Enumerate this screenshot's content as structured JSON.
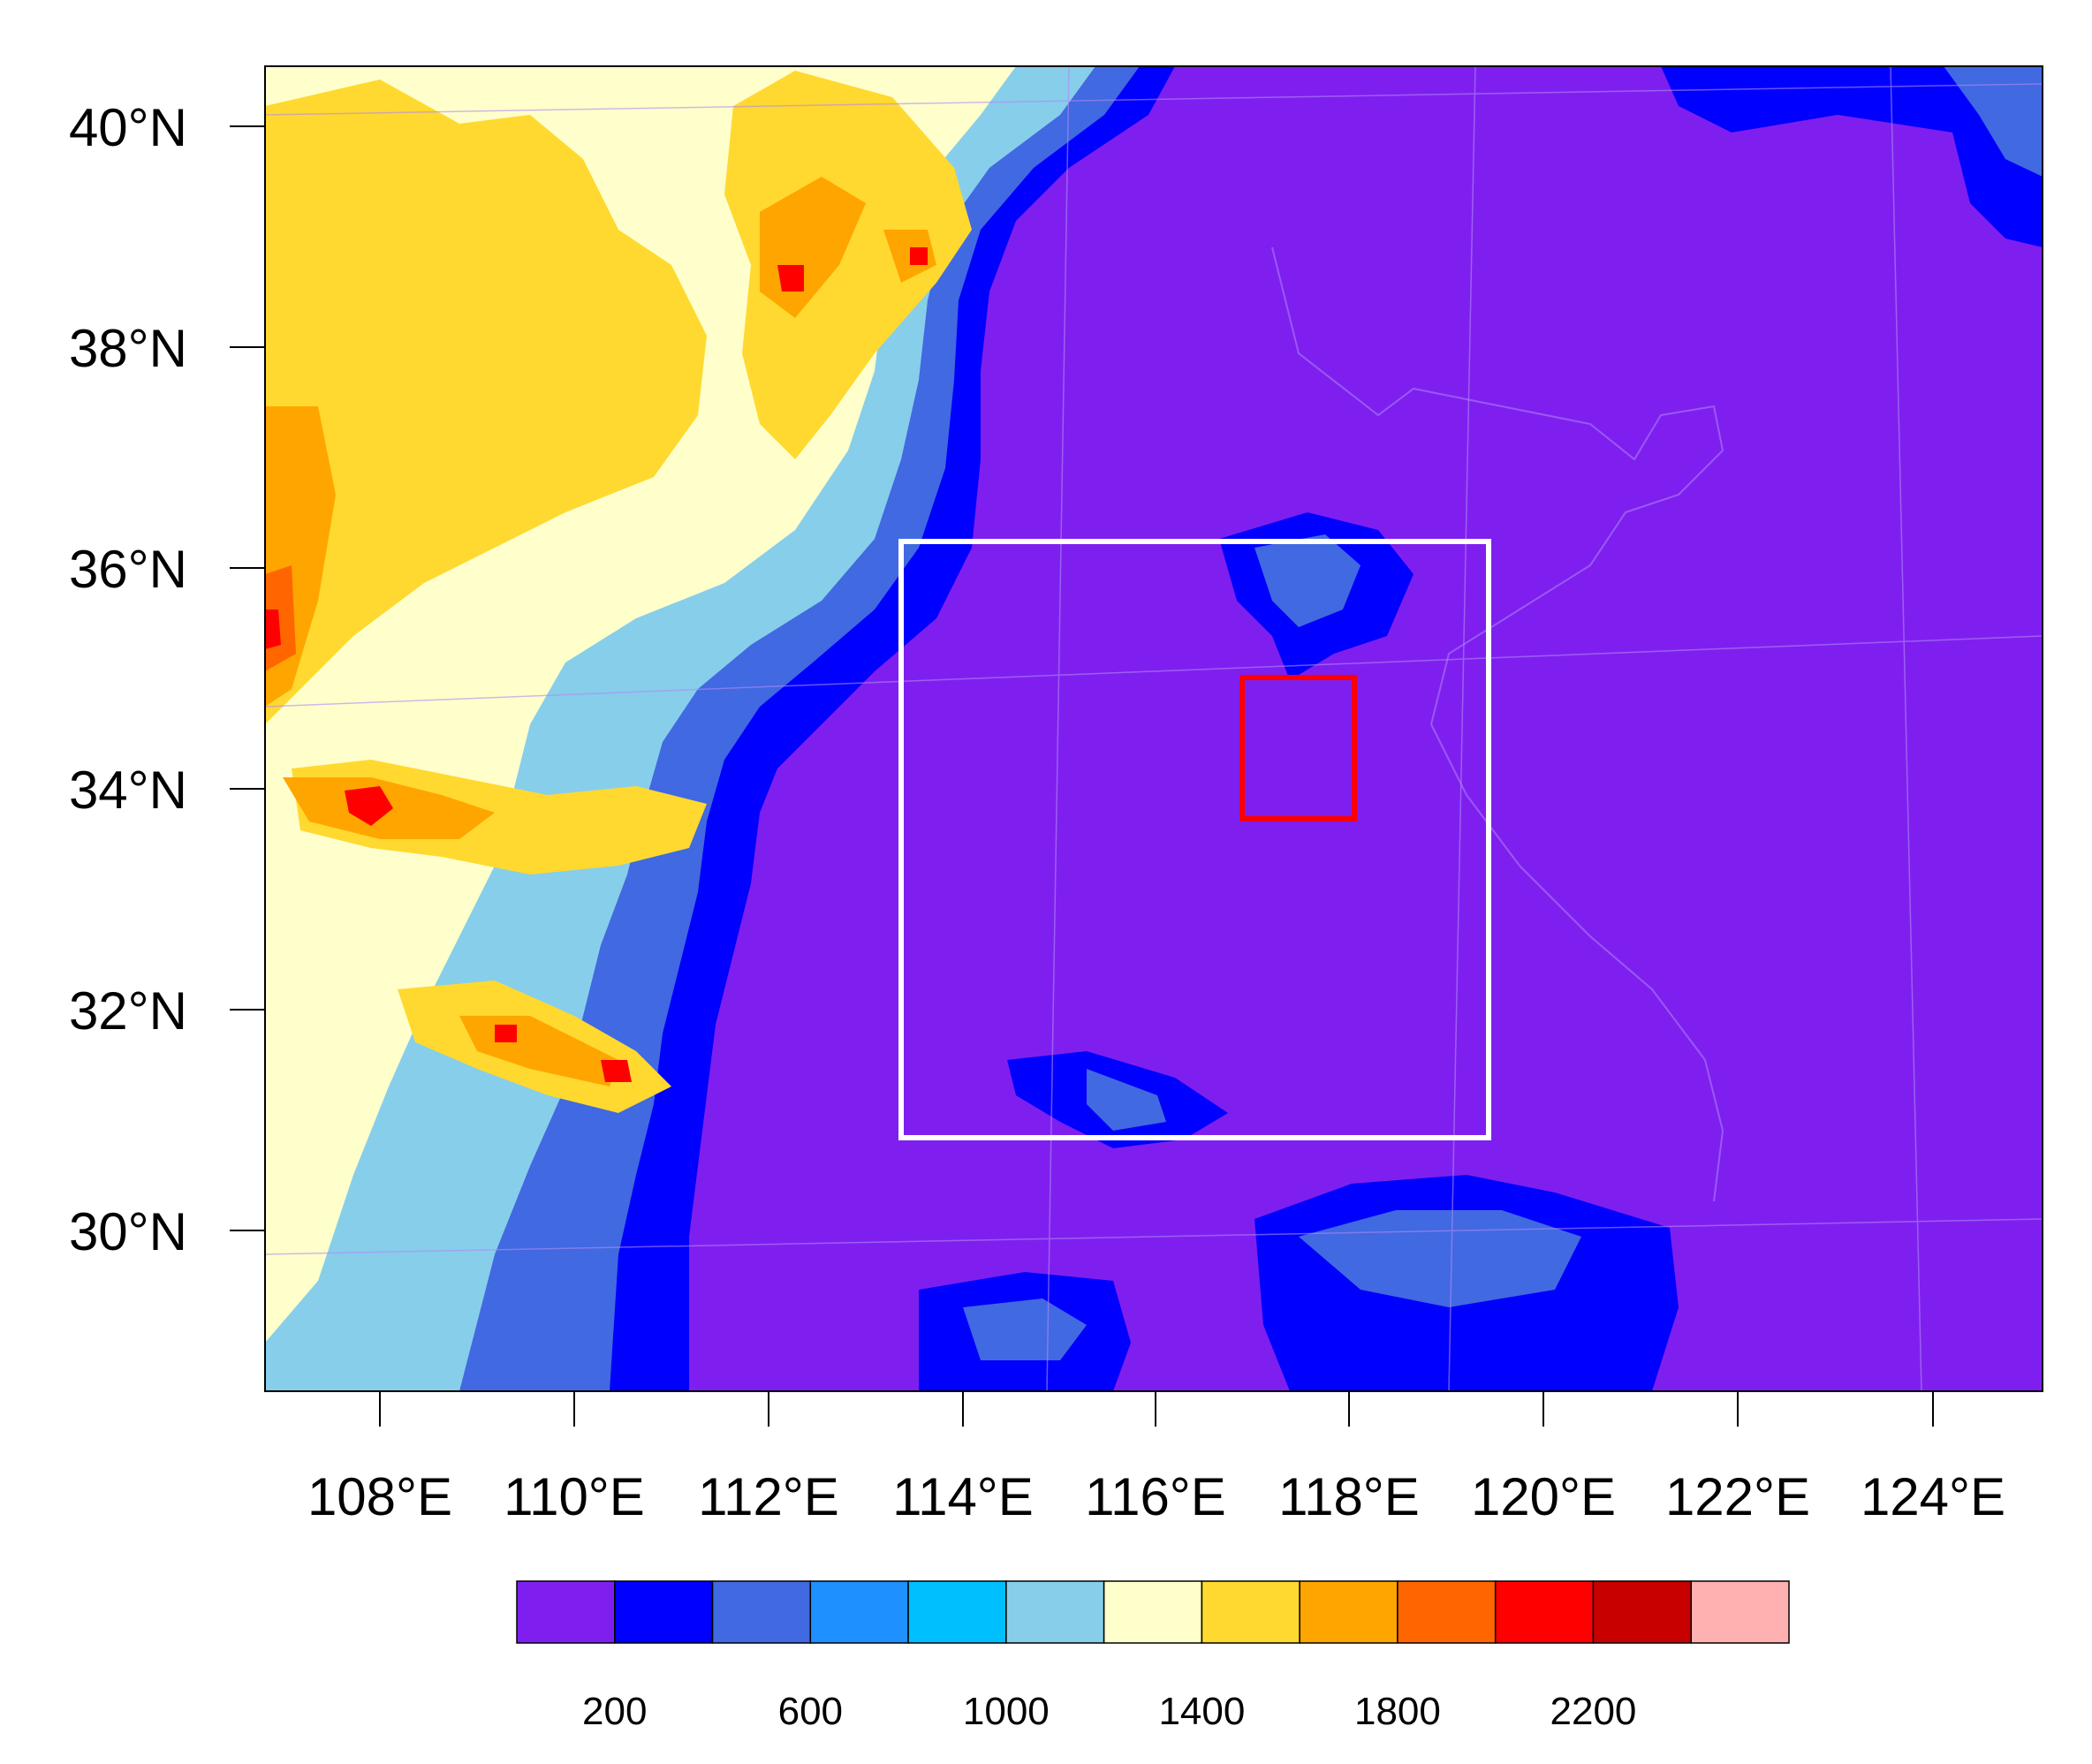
{
  "map": {
    "lat_labels": [
      "40°N",
      "38°N",
      "36°N",
      "34°N",
      "32°N",
      "30°N"
    ],
    "lon_labels": [
      "108°E",
      "110°E",
      "112°E",
      "114°E",
      "116°E",
      "118°E",
      "120°E",
      "122°E",
      "124°E"
    ],
    "background_color": "#7f1fef",
    "outer_domain_box_color": "#ffffff",
    "inner_domain_box_color": "#ff0000"
  },
  "colorbar": {
    "colors": [
      "#7f1fef",
      "#0000ff",
      "#4169e1",
      "#1e90ff",
      "#00bfff",
      "#87ceeb",
      "#ffffcc",
      "#ffd92f",
      "#ffa500",
      "#ff6600",
      "#ff0000",
      "#c80000",
      "#ffb0b0"
    ],
    "labels": [
      "200",
      "600",
      "1000",
      "1400",
      "1800",
      "2200"
    ]
  }
}
